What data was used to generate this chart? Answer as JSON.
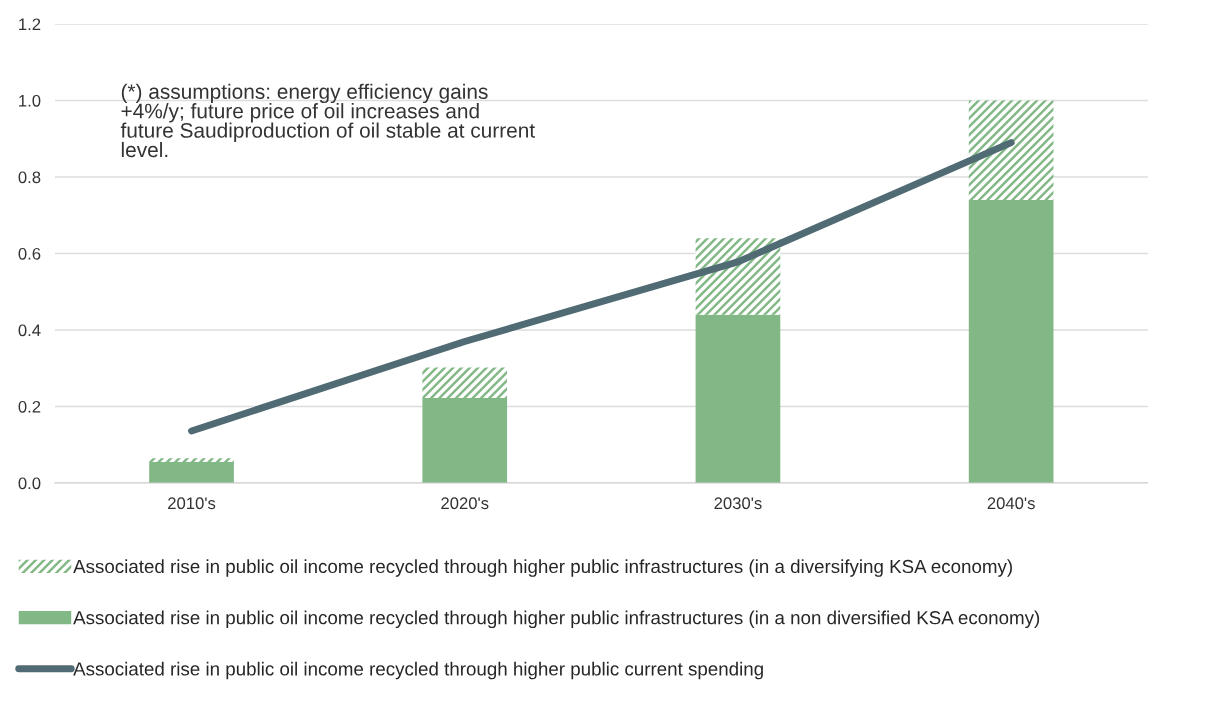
{
  "chart_data": {
    "type": "bar",
    "stacked": true,
    "categories": [
      "2010's",
      "2020's",
      "2030's",
      "2040's"
    ],
    "series": [
      {
        "name": "Associated rise in public oil income recycled through higher public infrastructures (in a non diversified KSA economy)",
        "color": "#82b886",
        "values": [
          0.055,
          0.222,
          0.44,
          0.74
        ]
      },
      {
        "name": "Associated rise in public oil income recycled through higher public infrastructures (in a diversifying KSA economy)",
        "color": "#82b886",
        "values": [
          0.01,
          0.08,
          0.2,
          0.26
        ]
      },
      {
        "type": "line",
        "name": "Associated rise in public oil income recycled through higher public current spending",
        "color": "#516b74",
        "values": [
          0.136,
          0.37,
          0.578,
          0.89
        ]
      }
    ],
    "ylim": [
      0,
      1.2
    ],
    "yticks": [
      {
        "value": 0,
        "label": "0.0"
      },
      {
        "value": 0.2,
        "label": "0.2"
      },
      {
        "value": 0.4,
        "label": "0.4"
      },
      {
        "value": 0.6,
        "label": "0.6"
      },
      {
        "value": 0.8,
        "label": "0.8"
      },
      {
        "value": 1.0,
        "label": "1.0"
      },
      {
        "value": 1.2,
        "label": "1.2"
      }
    ],
    "grid": "y",
    "legend": "bottom",
    "marker": "none",
    "line_style": "solid",
    "annotations": [
      "(*) assumptions: energy efficiency gains\n+4%/y; future price of oil increases and\nfuture Saudiproduction of oil stable at current\nlevel."
    ]
  }
}
